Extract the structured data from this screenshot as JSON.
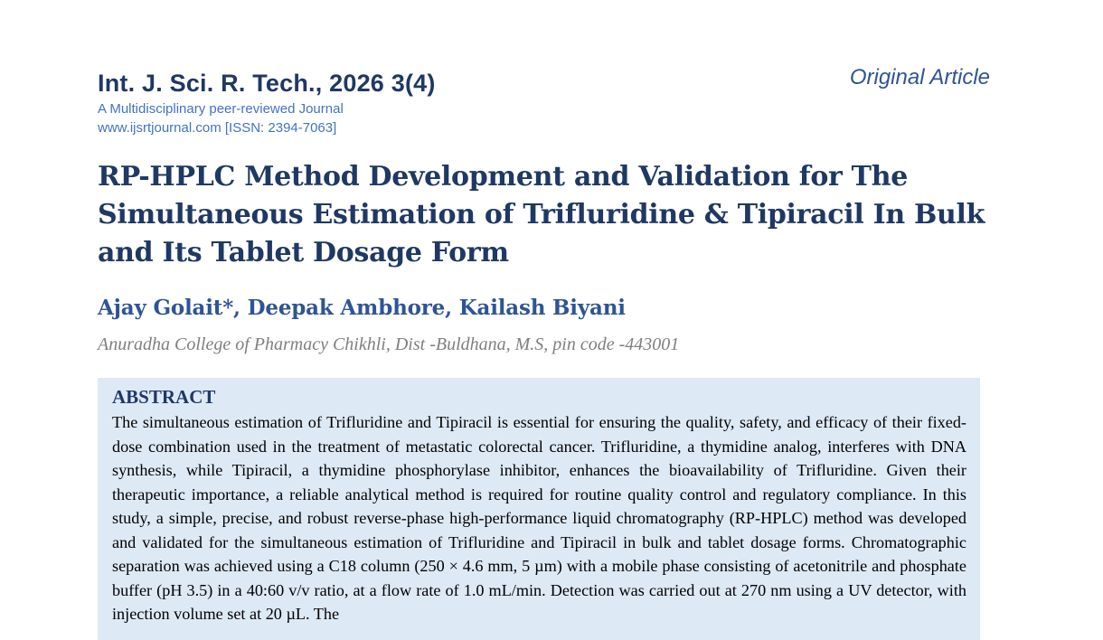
{
  "header": {
    "journal_title": "Int. J. Sci. R. Tech., 2026 3(4)",
    "journal_tagline": "A Multidisciplinary peer-reviewed Journal",
    "journal_website": "www.ijsrtjournal.com [ISSN: 2394-7063]",
    "article_type": "Original Article"
  },
  "paper": {
    "title": "RP-HPLC Method Development and Validation for The Simultaneous Estimation of Trifluridine & Tipiracil In Bulk and Its Tablet Dosage Form",
    "authors": "Ajay Golait*, Deepak Ambhore, Kailash Biyani",
    "affiliation": "Anuradha College of Pharmacy Chikhli, Dist -Buldhana, M.S, pin code -443001"
  },
  "abstract": {
    "heading": "ABSTRACT",
    "text": "The simultaneous estimation of Trifluridine and Tipiracil is essential for ensuring the quality, safety, and efficacy of their fixed-dose combination used in the treatment of metastatic colorectal cancer. Trifluridine, a thymidine analog, interferes with DNA synthesis, while Tipiracil, a thymidine phosphorylase inhibitor, enhances the bioavailability of Trifluridine. Given their therapeutic importance, a reliable analytical method is required for routine quality control and regulatory compliance. In this study, a simple, precise, and robust reverse-phase high-performance liquid chromatography (RP-HPLC) method was developed and validated for the simultaneous estimation of Trifluridine and Tipiracil in bulk and tablet dosage forms. Chromatographic separation was achieved using a C18 column (250 × 4.6 mm, 5 µm) with a mobile phase consisting of acetonitrile and phosphate buffer (pH 3.5) in a 40:60 v/v ratio, at a flow rate of 1.0 mL/min. Detection was carried out at 270 nm using a UV detector, with injection volume set at 20 µL. The"
  }
}
